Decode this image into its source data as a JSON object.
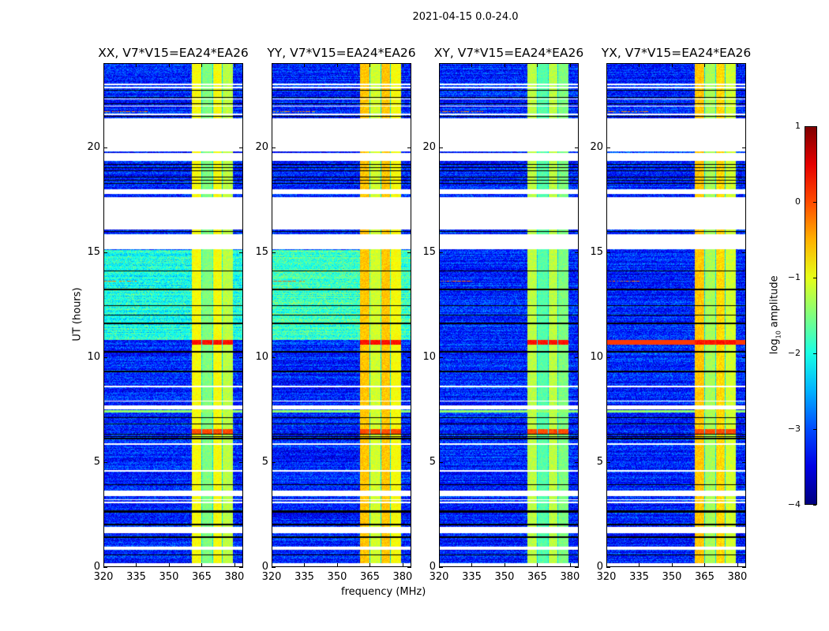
{
  "figure": {
    "suptitle": "2021-04-15 0.0-24.0",
    "ylabel": "UT (hours)",
    "xlabel": "frequency (MHz)",
    "colorbar_label_main": "log",
    "colorbar_label_sub": "10",
    "colorbar_label_rest": " amplitude"
  },
  "chart_data": {
    "type": "heatmap",
    "xlim": [
      320,
      384
    ],
    "ylim": [
      0,
      24
    ],
    "xticks": [
      320,
      335,
      350,
      365,
      380
    ],
    "yticks": [
      0,
      5,
      10,
      15,
      20
    ],
    "colormap": "jet",
    "clim": [
      -4,
      1
    ],
    "colorbar_ticks": [
      1,
      0,
      -1,
      -2,
      -3,
      -4
    ],
    "flagged_time_ranges_hours": [
      [
        0,
        0.15
      ],
      [
        0.8,
        0.95
      ],
      [
        1.6,
        1.9
      ],
      [
        3.35,
        3.6
      ],
      [
        3.0,
        3.08
      ],
      [
        3.15,
        3.2
      ],
      [
        4.52,
        4.58
      ],
      [
        5.82,
        5.88
      ],
      [
        7.5,
        7.7
      ],
      [
        7.88,
        7.93
      ],
      [
        8.57,
        8.63
      ],
      [
        15.13,
        15.85
      ],
      [
        16.07,
        17.65
      ],
      [
        17.8,
        18.0
      ],
      [
        19.35,
        19.75
      ],
      [
        19.8,
        21.4
      ],
      [
        21.55,
        21.62
      ],
      [
        21.95,
        22.0
      ],
      [
        22.3,
        22.35
      ],
      [
        22.85,
        22.9
      ],
      [
        23.0,
        23.05
      ]
    ],
    "black_line_times_hours": [
      0.55,
      1.4,
      2.0,
      2.6,
      2.65,
      3.9,
      6.1,
      6.2,
      6.3,
      6.8,
      7.1,
      7.55,
      9.3,
      9.33,
      10.25,
      11.6,
      12.0,
      12.45,
      13.2,
      13.25,
      14.1,
      16.0,
      17.95,
      18.3,
      18.45,
      18.6,
      18.9,
      19.05,
      19.2,
      21.5,
      22.1,
      22.4,
      22.75,
      23.0
    ],
    "band_MHz": [
      [
        360.5,
        365
      ],
      [
        365.5,
        370
      ],
      [
        370.5,
        374.5
      ],
      [
        375,
        379.6
      ]
    ],
    "background_level": -3.2,
    "events": [
      {
        "t": [
          10.6,
          10.8
        ],
        "level": 0.3,
        "where": "band"
      },
      {
        "t": [
          6.3,
          6.55
        ],
        "level": 0.0,
        "where": "band"
      },
      {
        "t": [
          7.35,
          7.45
        ],
        "level": -1.4,
        "where": "all"
      },
      {
        "t": [
          13.6,
          13.65
        ],
        "level": -0.2,
        "where": "low",
        "fmax": 335
      },
      {
        "t": [
          21.7,
          21.75
        ],
        "level": -0.3,
        "where": "low",
        "fmax": 340
      }
    ],
    "panels": [
      {
        "title": "XX, V7*V15=EA24*EA26",
        "band_levels": [
          -0.9,
          -1.5,
          -0.9,
          -1.2
        ],
        "active_bg_hours": [
          10.8,
          15.1
        ],
        "active_bg_level": -2.0,
        "full_width_event": false
      },
      {
        "title": "YY, V7*V15=EA24*EA26",
        "band_levels": [
          -0.6,
          -1.1,
          -0.6,
          -0.9
        ],
        "active_bg_hours": [
          10.8,
          15.1
        ],
        "active_bg_level": -1.8,
        "full_width_event": false
      },
      {
        "title": "XY, V7*V15=EA24*EA26",
        "band_levels": [
          -1.2,
          -1.7,
          -1.2,
          -1.5
        ],
        "active_bg_hours": [
          0,
          0
        ],
        "active_bg_level": -3.2,
        "full_width_event": false
      },
      {
        "title": "YX, V7*V15=EA24*EA26",
        "band_levels": [
          -0.6,
          -1.3,
          -0.7,
          -1.1
        ],
        "active_bg_hours": [
          0,
          0
        ],
        "active_bg_level": -3.2,
        "full_width_event": true
      }
    ]
  }
}
